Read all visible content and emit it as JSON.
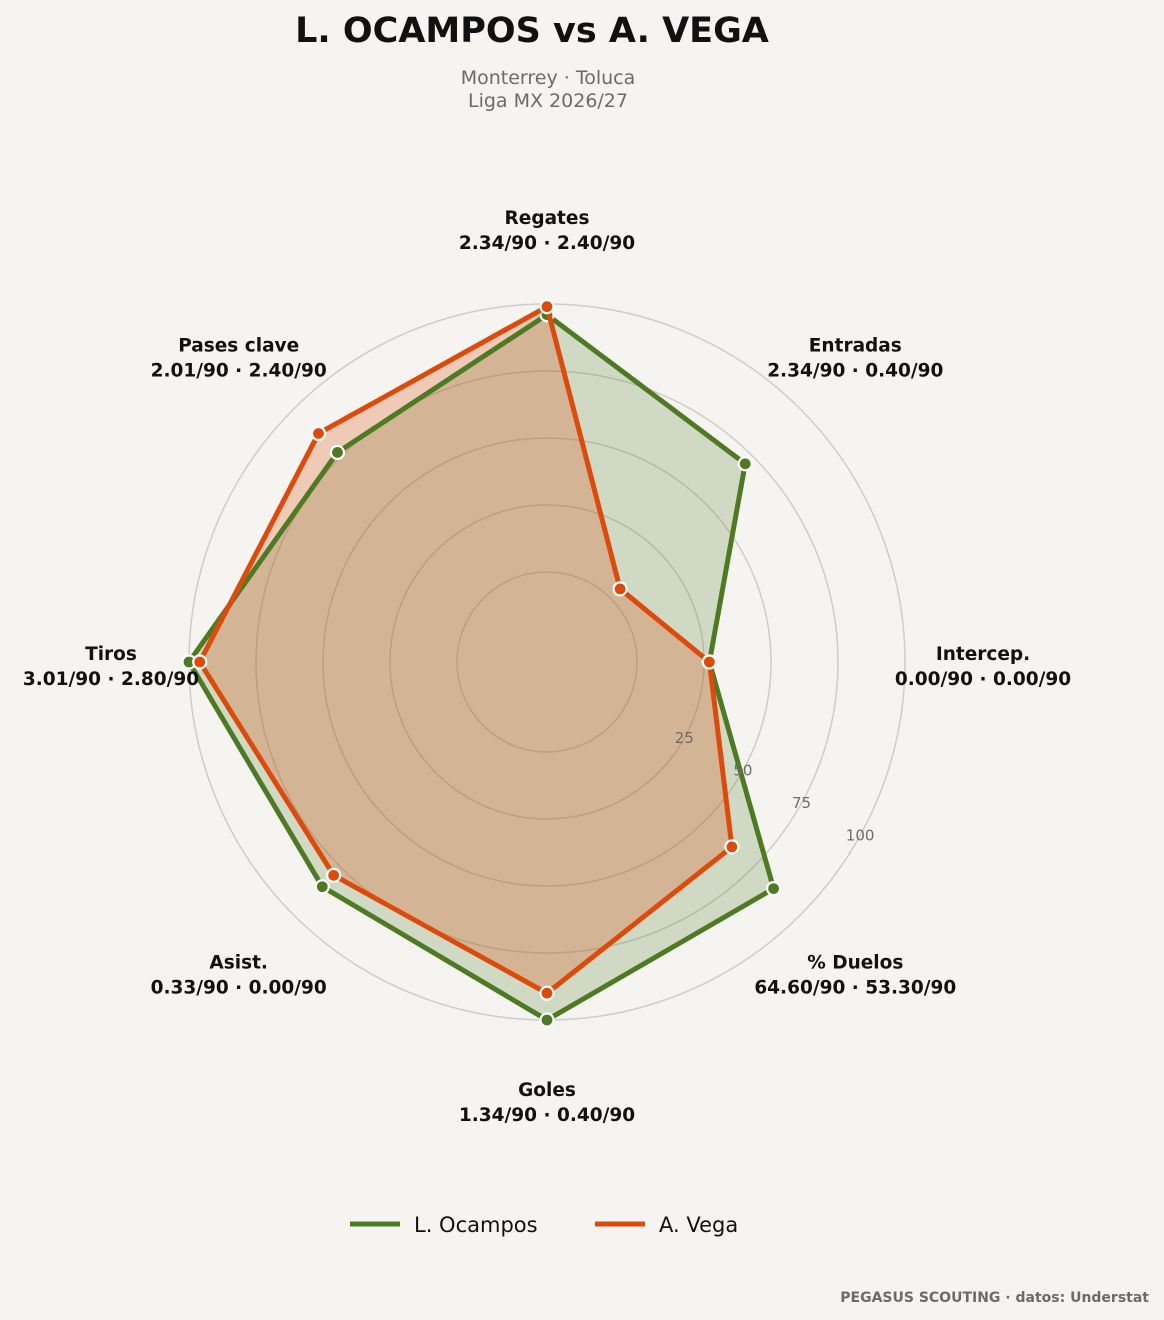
{
  "title": "L. OCAMPOS  vs  A. VEGA",
  "subtitle_line1": "Monterrey · Toluca",
  "subtitle_line2": "Liga MX 2026/27",
  "footer": "PEGASUS SCOUTING · datos: Understat",
  "colors": {
    "background": "#f5f4f1",
    "series1": "#4e7a24",
    "series2": "#dc4a0c",
    "grid": "#cfcdc8"
  },
  "chart_data": {
    "type": "radar",
    "axes": [
      {
        "name": "Regates",
        "value_label": "2.34/90 · 2.40/90"
      },
      {
        "name": "Entradas",
        "value_label": "2.34/90 · 0.40/90"
      },
      {
        "name": "Intercep.",
        "value_label": "0.00/90 · 0.00/90"
      },
      {
        "name": "% Duelos",
        "value_label": "64.60/90 · 53.30/90"
      },
      {
        "name": "Goles",
        "value_label": "1.34/90 · 0.40/90"
      },
      {
        "name": "Asist.",
        "value_label": "0.33/90 · 0.00/90"
      },
      {
        "name": "Tiros",
        "value_label": "3.01/90 · 2.80/90"
      },
      {
        "name": "Pases clave",
        "value_label": "2.01/90 · 2.40/90"
      }
    ],
    "r_ticks": [
      "25",
      "50",
      "75",
      "100"
    ],
    "r_range": [
      0,
      100
    ],
    "r_offset": 25,
    "series": [
      {
        "name": "L. Ocampos",
        "values": [
          96,
          71,
          27,
          86,
          100,
          85,
          100,
          77
        ]
      },
      {
        "name": "A. Vega",
        "values": [
          99,
          5,
          27,
          64,
          90,
          79,
          96,
          87
        ]
      }
    ],
    "legend_position": "bottom-center"
  }
}
